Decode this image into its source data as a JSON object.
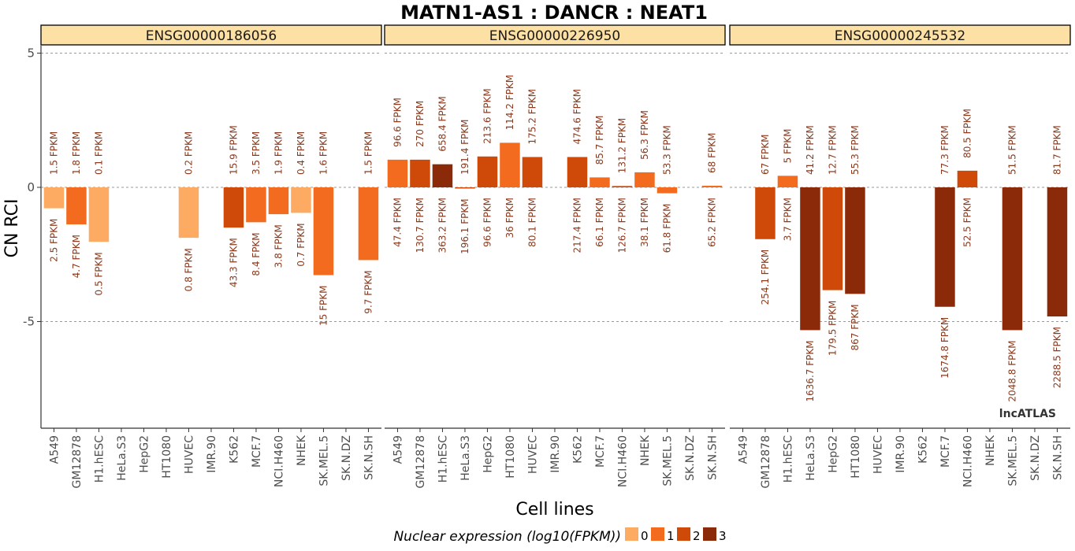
{
  "chart_data": {
    "type": "bar",
    "title": "MATN1-AS1 : DANCR : NEAT1",
    "xlabel": "Cell lines",
    "ylabel": "CN RCI",
    "ylim": [
      -9,
      6
    ],
    "yticks": [
      5,
      0,
      -5
    ],
    "grid": "dashed horizontal at y ticks",
    "categories": [
      "A549",
      "GM12878",
      "H1.hESC",
      "HeLa.S3",
      "HepG2",
      "HT1080",
      "HUVEC",
      "IMR.90",
      "K562",
      "MCF.7",
      "NCI.H460",
      "NHEK",
      "SK.MEL.5",
      "SK.N.DZ",
      "SK.N.SH"
    ],
    "legend": {
      "title": "Nuclear expression (log10(FPKM))",
      "position": "bottom",
      "levels": [
        {
          "label": "0",
          "color": "#FDAA63"
        },
        {
          "label": "1",
          "color": "#F26B1F"
        },
        {
          "label": "2",
          "color": "#CF4A08"
        },
        {
          "label": "3",
          "color": "#8B2A08"
        }
      ]
    },
    "watermark": "lncATLAS",
    "panels": [
      {
        "strip": "ENSG00000186056",
        "bars": [
          {
            "cell": "A549",
            "value": -0.78,
            "level": 0,
            "nuc": "2.5 FPKM",
            "cyto": "1.5 FPKM"
          },
          {
            "cell": "GM12878",
            "value": -1.38,
            "level": 1,
            "nuc": "4.7 FPKM",
            "cyto": "1.8 FPKM"
          },
          {
            "cell": "H1.hESC",
            "value": -2.03,
            "level": 0,
            "nuc": "0.5 FPKM",
            "cyto": "0.1 FPKM"
          },
          {
            "cell": "HeLa.S3",
            "value": null
          },
          {
            "cell": "HepG2",
            "value": null
          },
          {
            "cell": "HT1080",
            "value": null
          },
          {
            "cell": "HUVEC",
            "value": -1.88,
            "level": 0,
            "nuc": "0.8 FPKM",
            "cyto": "0.2 FPKM"
          },
          {
            "cell": "IMR.90",
            "value": null
          },
          {
            "cell": "K562",
            "value": -1.5,
            "level": 2,
            "nuc": "43.3 FPKM",
            "cyto": "15.9 FPKM"
          },
          {
            "cell": "MCF.7",
            "value": -1.3,
            "level": 1,
            "nuc": "8.4 FPKM",
            "cyto": "3.5 FPKM"
          },
          {
            "cell": "NCI.H460",
            "value": -1.0,
            "level": 1,
            "nuc": "3.8 FPKM",
            "cyto": "1.9 FPKM"
          },
          {
            "cell": "NHEK",
            "value": -0.95,
            "level": 0,
            "nuc": "0.7 FPKM",
            "cyto": "0.4 FPKM"
          },
          {
            "cell": "SK.MEL.5",
            "value": -3.27,
            "level": 1,
            "nuc": "15 FPKM",
            "cyto": "1.6 FPKM"
          },
          {
            "cell": "SK.N.DZ",
            "value": null
          },
          {
            "cell": "SK.N.SH",
            "value": -2.71,
            "level": 1,
            "nuc": "9.7 FPKM",
            "cyto": "1.5 FPKM"
          }
        ]
      },
      {
        "strip": "ENSG00000226950",
        "bars": [
          {
            "cell": "A549",
            "value": 1.03,
            "level": 1,
            "nuc": "47.4 FPKM",
            "cyto": "96.6 FPKM"
          },
          {
            "cell": "GM12878",
            "value": 1.03,
            "level": 2,
            "nuc": "130.7 FPKM",
            "cyto": "270 FPKM"
          },
          {
            "cell": "H1.hESC",
            "value": 0.86,
            "level": 3,
            "nuc": "363.2 FPKM",
            "cyto": "658.4 FPKM"
          },
          {
            "cell": "HeLa.S3",
            "value": -0.04,
            "level": 2,
            "nuc": "196.1 FPKM",
            "cyto": "191.4 FPKM"
          },
          {
            "cell": "HepG2",
            "value": 1.15,
            "level": 2,
            "nuc": "96.6 FPKM",
            "cyto": "213.6 FPKM"
          },
          {
            "cell": "HT1080",
            "value": 1.66,
            "level": 1,
            "nuc": "36 FPKM",
            "cyto": "114.2 FPKM"
          },
          {
            "cell": "HUVEC",
            "value": 1.13,
            "level": 2,
            "nuc": "80.1 FPKM",
            "cyto": "175.2 FPKM"
          },
          {
            "cell": "IMR.90",
            "value": null
          },
          {
            "cell": "K562",
            "value": 1.13,
            "level": 2,
            "nuc": "217.4 FPKM",
            "cyto": "474.6 FPKM"
          },
          {
            "cell": "MCF.7",
            "value": 0.37,
            "level": 1,
            "nuc": "66.1 FPKM",
            "cyto": "85.7 FPKM"
          },
          {
            "cell": "NCI.H460",
            "value": 0.05,
            "level": 2,
            "nuc": "126.7 FPKM",
            "cyto": "131.2 FPKM"
          },
          {
            "cell": "NHEK",
            "value": 0.56,
            "level": 1,
            "nuc": "38.1 FPKM",
            "cyto": "56.3 FPKM"
          },
          {
            "cell": "SK.MEL.5",
            "value": -0.22,
            "level": 1,
            "nuc": "61.8 FPKM",
            "cyto": "53.3 FPKM"
          },
          {
            "cell": "SK.N.DZ",
            "value": null
          },
          {
            "cell": "SK.N.SH",
            "value": 0.06,
            "level": 1,
            "nuc": "65.2 FPKM",
            "cyto": "68 FPKM"
          }
        ]
      },
      {
        "strip": "ENSG00000245532",
        "bars": [
          {
            "cell": "A549",
            "value": null
          },
          {
            "cell": "GM12878",
            "value": -1.93,
            "level": 2,
            "nuc": "254.1 FPKM",
            "cyto": "67 FPKM"
          },
          {
            "cell": "H1.hESC",
            "value": 0.43,
            "level": 1,
            "nuc": "3.7 FPKM",
            "cyto": "5 FPKM"
          },
          {
            "cell": "HeLa.S3",
            "value": -5.32,
            "level": 3,
            "nuc": "1636.7 FPKM",
            "cyto": "41.2 FPKM"
          },
          {
            "cell": "HepG2",
            "value": -3.83,
            "level": 2,
            "nuc": "179.5 FPKM",
            "cyto": "12.7 FPKM"
          },
          {
            "cell": "HT1080",
            "value": -3.97,
            "level": 3,
            "nuc": "867 FPKM",
            "cyto": "55.3 FPKM"
          },
          {
            "cell": "HUVEC",
            "value": null
          },
          {
            "cell": "IMR.90",
            "value": null
          },
          {
            "cell": "K562",
            "value": null
          },
          {
            "cell": "MCF.7",
            "value": -4.45,
            "level": 3,
            "nuc": "1674.8 FPKM",
            "cyto": "77.3 FPKM"
          },
          {
            "cell": "NCI.H460",
            "value": 0.62,
            "level": 2,
            "nuc": "52.5 FPKM",
            "cyto": "80.5 FPKM"
          },
          {
            "cell": "NHEK",
            "value": null
          },
          {
            "cell": "SK.MEL.5",
            "value": -5.32,
            "level": 3,
            "nuc": "2048.8 FPKM",
            "cyto": "51.5 FPKM"
          },
          {
            "cell": "SK.N.DZ",
            "value": null
          },
          {
            "cell": "SK.N.SH",
            "value": -4.81,
            "level": 3,
            "nuc": "2288.5 FPKM",
            "cyto": "81.7 FPKM"
          }
        ]
      }
    ]
  }
}
